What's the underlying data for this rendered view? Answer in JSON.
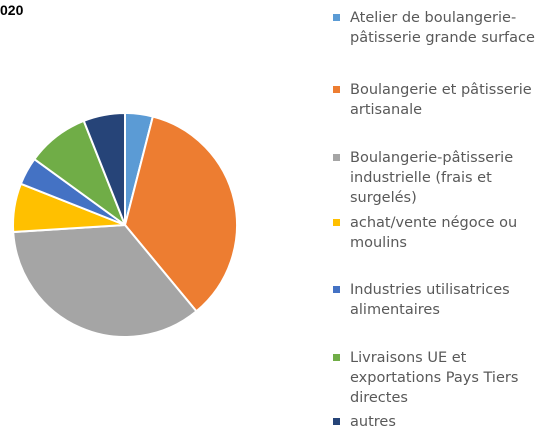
{
  "chart_data": {
    "type": "pie",
    "title": "020",
    "categories": [
      "Atelier de boulangerie-pâtisserie grande surface",
      "Boulangerie et pâtisserie artisanale",
      "Boulangerie-pâtisserie industrielle (frais et surgelés)",
      "achat/vente négoce ou moulins",
      "Industries utilisatrices alimentaires",
      "Livraisons UE et exportations Pays Tiers directes",
      "autres"
    ],
    "values": [
      4,
      35,
      35,
      7,
      4,
      9,
      6
    ],
    "colors": [
      "#5b9bd5",
      "#ed7d31",
      "#a5a5a5",
      "#ffc000",
      "#4472c4",
      "#70ad47",
      "#264478"
    ],
    "legend": "right"
  }
}
